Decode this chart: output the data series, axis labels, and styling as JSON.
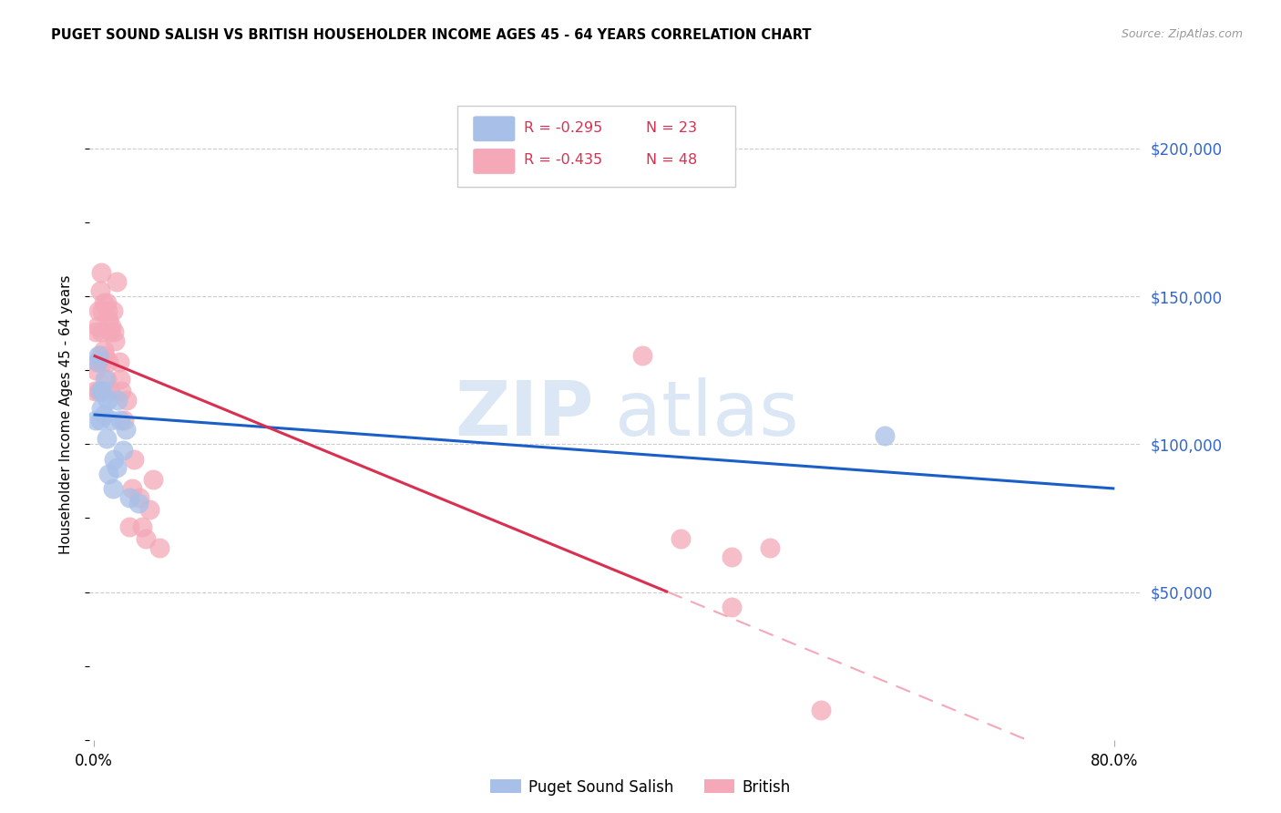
{
  "title": "PUGET SOUND SALISH VS BRITISH HOUSEHOLDER INCOME AGES 45 - 64 YEARS CORRELATION CHART",
  "source": "Source: ZipAtlas.com",
  "ylabel": "Householder Income Ages 45 - 64 years",
  "ytick_values": [
    50000,
    100000,
    150000,
    200000
  ],
  "ytick_labels": [
    "$50,000",
    "$100,000",
    "$150,000",
    "$200,000"
  ],
  "ylim": [
    0,
    220000
  ],
  "xlim": [
    -0.003,
    0.82
  ],
  "legend_blue_r": "R = -0.295",
  "legend_blue_n": "N = 23",
  "legend_pink_r": "R = -0.435",
  "legend_pink_n": "N = 48",
  "watermark_zip": "ZIP",
  "watermark_atlas": "atlas",
  "blue_marker_color": "#a8c0e8",
  "pink_marker_color": "#f4a8b8",
  "blue_line_color": "#1a5fc8",
  "pink_line_color": "#d83050",
  "pink_dash_color": "#f4a8b8",
  "grid_color": "#cccccc",
  "bg_color": "#ffffff",
  "legend_r_color": "#d83050",
  "legend_n_color": "#d83050",
  "ytick_color": "#3366cc",
  "blue_scatter_x": [
    0.002,
    0.003,
    0.004,
    0.005,
    0.005,
    0.006,
    0.007,
    0.008,
    0.009,
    0.01,
    0.011,
    0.012,
    0.014,
    0.015,
    0.016,
    0.018,
    0.019,
    0.021,
    0.023,
    0.025,
    0.028,
    0.035,
    0.62
  ],
  "blue_scatter_y": [
    108000,
    128000,
    130000,
    118000,
    108000,
    112000,
    118000,
    110000,
    122000,
    102000,
    115000,
    90000,
    108000,
    85000,
    95000,
    92000,
    115000,
    108000,
    98000,
    105000,
    82000,
    80000,
    103000
  ],
  "pink_scatter_x": [
    0.001,
    0.002,
    0.002,
    0.003,
    0.003,
    0.004,
    0.004,
    0.005,
    0.005,
    0.006,
    0.006,
    0.007,
    0.007,
    0.008,
    0.008,
    0.009,
    0.01,
    0.01,
    0.011,
    0.012,
    0.012,
    0.013,
    0.013,
    0.014,
    0.015,
    0.016,
    0.017,
    0.018,
    0.02,
    0.021,
    0.022,
    0.024,
    0.026,
    0.028,
    0.03,
    0.032,
    0.036,
    0.038,
    0.041,
    0.044,
    0.047,
    0.052,
    0.43,
    0.46,
    0.5,
    0.53,
    0.57,
    0.5
  ],
  "pink_scatter_y": [
    118000,
    125000,
    138000,
    140000,
    128000,
    145000,
    118000,
    152000,
    130000,
    158000,
    138000,
    145000,
    128000,
    148000,
    132000,
    130000,
    148000,
    122000,
    145000,
    142000,
    128000,
    138000,
    118000,
    140000,
    145000,
    138000,
    135000,
    155000,
    128000,
    122000,
    118000,
    108000,
    115000,
    72000,
    85000,
    95000,
    82000,
    72000,
    68000,
    78000,
    88000,
    65000,
    130000,
    68000,
    45000,
    65000,
    10000,
    62000
  ]
}
